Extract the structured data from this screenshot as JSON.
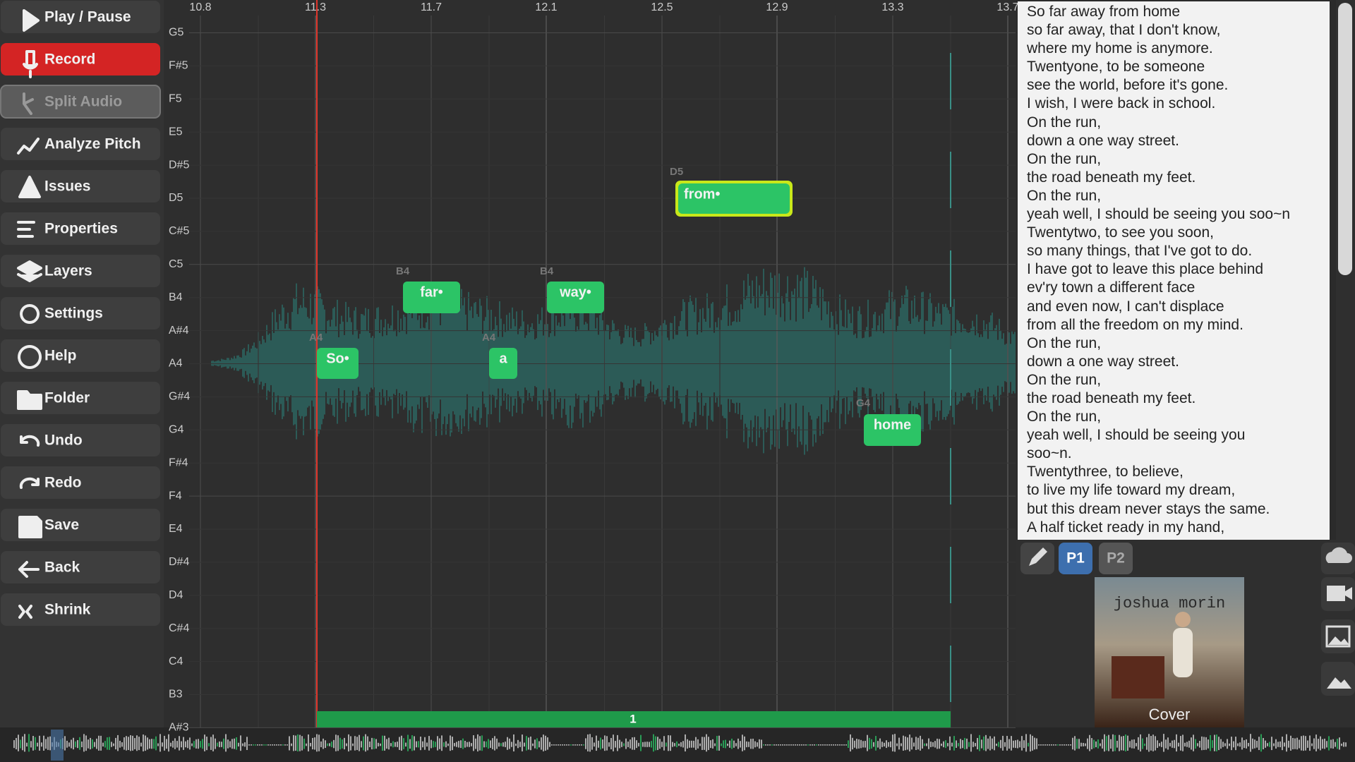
{
  "sidebar": {
    "buttons": [
      "Play / Pause",
      "Record",
      "Split Audio",
      "Analyze Pitch",
      "Issues",
      "Properties",
      "Layers",
      "Settings",
      "Help",
      "Folder",
      "Undo",
      "Redo",
      "Save",
      "Back",
      "Shrink"
    ]
  },
  "editor": {
    "time_ticks": [
      "10.8",
      "11.3",
      "11.7",
      "12.1",
      "12.5",
      "12.9",
      "13.3",
      "13.7"
    ],
    "pitch_labels": [
      "G5",
      "F#5",
      "F5",
      "E5",
      "D#5",
      "D5",
      "C#5",
      "C5",
      "B4",
      "A#4",
      "A4",
      "G#4",
      "G4",
      "F#4",
      "F4",
      "E4",
      "D#4",
      "D4",
      "C#4",
      "C4",
      "B3",
      "A#3"
    ],
    "notes": [
      {
        "pitch": "A4",
        "text": "So•"
      },
      {
        "pitch": "B4",
        "text": "far•"
      },
      {
        "pitch": "A4",
        "text": "a"
      },
      {
        "pitch": "B4",
        "text": "way•"
      },
      {
        "pitch": "D5",
        "text": "from•"
      },
      {
        "pitch": "G4",
        "text": "home"
      }
    ],
    "line_number": "1"
  },
  "lyrics": {
    "lines": [
      "So far away from home",
      "so far away, that I don't know,",
      "where my home is anymore.",
      "Twentyone, to be someone",
      "see the world, before it's gone.",
      "I wish, I were back in school.",
      "On the run,",
      "down a one way street.",
      "On the run,",
      "the road beneath my feet.",
      "On the run,",
      "yeah well, I should be seeing you soo~n",
      "Twentytwo, to see you soon,",
      "so many things, that I've got to do.",
      "I have got to leave this place behind",
      "ev'ry town a different face",
      "and even now, I can't displace",
      "from all the freedom on my mind.",
      "On the run,",
      "down a one way street.",
      "On the run,",
      "the road beneath my feet.",
      "On the run,",
      "yeah well, I should be seeing you",
      "soo~n.",
      "Twentythree, to believe,",
      "to live my life toward my dream,",
      "but this dream never stays the same.",
      "A half ticket ready in my hand,"
    ]
  },
  "tabs": [
    "P1",
    "P2"
  ],
  "cover": {
    "artist": "joshua morin",
    "label": "Cover"
  }
}
